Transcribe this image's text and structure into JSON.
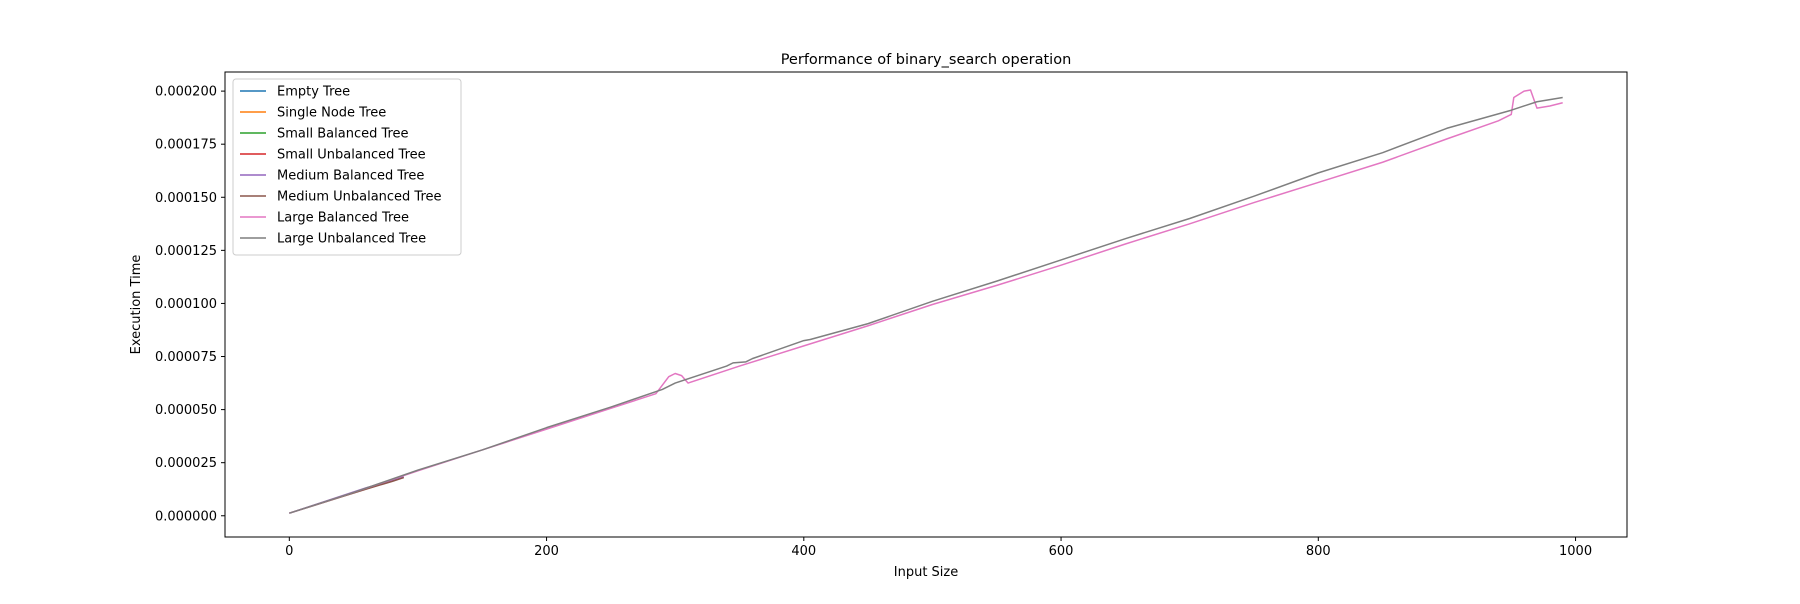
{
  "chart_data": {
    "type": "line",
    "title": "Performance of binary_search operation",
    "xlabel": "Input Size",
    "ylabel": "Execution Time",
    "xlim": [
      -50,
      1040
    ],
    "ylim": [
      -1e-05,
      0.000209
    ],
    "xticks": [
      0,
      200,
      400,
      600,
      800,
      1000
    ],
    "xtick_labels": [
      "0",
      "200",
      "400",
      "600",
      "800",
      "1000"
    ],
    "yticks": [
      0,
      2.5e-05,
      5e-05,
      7.5e-05,
      0.0001,
      0.000125,
      0.00015,
      0.000175,
      0.0002
    ],
    "ytick_labels": [
      "0.000000",
      "0.000025",
      "0.000050",
      "0.000075",
      "0.000100",
      "0.000125",
      "0.000150",
      "0.000175",
      "0.000200"
    ],
    "grid": false,
    "legend_position": "upper-left",
    "series": [
      {
        "name": "Empty Tree",
        "color": "#1f77b4",
        "x": [],
        "y": []
      },
      {
        "name": "Single Node Tree",
        "color": "#ff7f0e",
        "x": [],
        "y": []
      },
      {
        "name": "Small Balanced Tree",
        "color": "#2ca02c",
        "x": [],
        "y": []
      },
      {
        "name": "Small Unbalanced Tree",
        "color": "#d62728",
        "x": [],
        "y": []
      },
      {
        "name": "Medium Balanced Tree",
        "color": "#9467bd",
        "x": [
          0,
          20,
          40,
          60,
          80,
          89
        ],
        "y": [
          1.2e-06,
          5.2e-06,
          9.2e-06,
          1.32e-05,
          1.66e-05,
          1.84e-05
        ]
      },
      {
        "name": "Medium Unbalanced Tree",
        "color": "#8c564b",
        "x": [
          0,
          20,
          40,
          60,
          80,
          89
        ],
        "y": [
          1.2e-06,
          5e-06,
          8.8e-06,
          1.26e-05,
          1.62e-05,
          1.8e-05
        ]
      },
      {
        "name": "Large Balanced Tree",
        "color": "#e377c2",
        "x": [
          0,
          50,
          100,
          150,
          200,
          250,
          285,
          295,
          300,
          305,
          310,
          350,
          400,
          450,
          500,
          550,
          600,
          650,
          700,
          750,
          800,
          850,
          900,
          940,
          950,
          952,
          960,
          965,
          970,
          980,
          990
        ],
        "y": [
          1.2e-06,
          1.1e-05,
          2.12e-05,
          3.1e-05,
          4.08e-05,
          5.06e-05,
          5.75e-05,
          6.55e-05,
          6.7e-05,
          6.6e-05,
          6.25e-05,
          7.05e-05,
          8e-05,
          8.95e-05,
          9.95e-05,
          0.0001085,
          0.000118,
          0.000128,
          0.0001375,
          0.0001475,
          0.000157,
          0.0001665,
          0.0001775,
          0.000186,
          0.000189,
          0.000197,
          0.0002,
          0.0002005,
          0.000192,
          0.000193,
          0.0001945
        ]
      },
      {
        "name": "Large Unbalanced Tree",
        "color": "#7f7f7f",
        "x": [
          0,
          50,
          100,
          150,
          200,
          250,
          290,
          300,
          340,
          345,
          355,
          360,
          400,
          405,
          450,
          500,
          550,
          600,
          650,
          700,
          750,
          800,
          850,
          900,
          950,
          960,
          970,
          990
        ],
        "y": [
          1.2e-06,
          1.1e-05,
          2.15e-05,
          3.1e-05,
          4.15e-05,
          5.12e-05,
          5.95e-05,
          6.25e-05,
          7.05e-05,
          7.2e-05,
          7.25e-05,
          7.4e-05,
          8.25e-05,
          8.3e-05,
          9.05e-05,
          0.000101,
          0.0001105,
          0.0001205,
          0.0001305,
          0.00014,
          0.0001505,
          0.0001615,
          0.000171,
          0.0001825,
          0.000191,
          0.000193,
          0.000195,
          0.000197
        ]
      }
    ]
  }
}
